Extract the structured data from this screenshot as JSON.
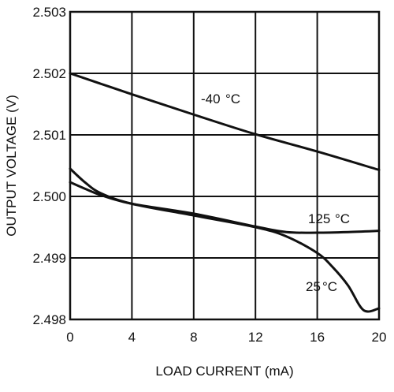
{
  "chart_data": {
    "type": "line",
    "title": "",
    "xlabel": "LOAD CURRENT (mA)",
    "ylabel": "OUTPUT VOLTAGE (V)",
    "xlim": [
      0,
      20
    ],
    "ylim": [
      2.498,
      2.503
    ],
    "grid": true,
    "x_ticks": [
      0,
      4,
      8,
      12,
      16,
      20
    ],
    "y_ticks": [
      2.498,
      2.499,
      2.5,
      2.501,
      2.502,
      2.503
    ],
    "x_tick_labels": [
      "0",
      "4",
      "8",
      "12",
      "16",
      "20"
    ],
    "y_tick_labels": [
      "2.498",
      "2.499",
      "2.500",
      "2.501",
      "2.502",
      "2.503"
    ],
    "series": [
      {
        "name": "-40°C",
        "label_main": "-40",
        "label_unit": "°C",
        "x": [
          0,
          4,
          8,
          12,
          16,
          20
        ],
        "values": [
          2.502,
          2.50166,
          2.50133,
          2.50101,
          2.50073,
          2.50043
        ]
      },
      {
        "name": "125°C",
        "label_main": "125",
        "label_unit": "°C",
        "x": [
          0,
          1,
          2,
          4,
          8,
          12,
          14,
          16,
          18,
          20
        ],
        "values": [
          2.50023,
          2.50012,
          2.50002,
          2.49988,
          2.49972,
          2.49951,
          2.49942,
          2.49941,
          2.49942,
          2.49944
        ]
      },
      {
        "name": "25°C",
        "label_main": "25",
        "label_unit": "°C",
        "x": [
          0,
          1,
          2,
          4,
          8,
          12,
          14,
          16,
          17,
          18,
          19,
          20
        ],
        "values": [
          2.50045,
          2.50022,
          2.50005,
          2.49988,
          2.49969,
          2.4995,
          2.49935,
          2.49908,
          2.49885,
          2.49855,
          2.49815,
          2.49818
        ]
      }
    ],
    "colors": {
      "axis": "#111111",
      "grid": "#111111",
      "curve": "#111111"
    }
  }
}
